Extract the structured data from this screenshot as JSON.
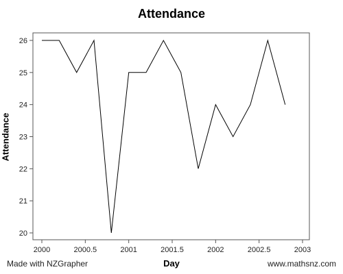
{
  "footer": {
    "left_text": "Made with NZGrapher",
    "right_text": "www.mathsnz.com"
  },
  "chart_data": {
    "type": "line",
    "title": "Attendance",
    "xlabel": "Day",
    "ylabel": "Attendance",
    "xlim": [
      2000,
      3003
    ],
    "ylim": [
      19.7,
      26.2
    ],
    "x_ticks": [
      2000,
      2000.5,
      2001,
      2001.5,
      2002,
      2002.5,
      2003
    ],
    "x_tick_labels": [
      "2000",
      "2000.5",
      "2001",
      "2001.5",
      "2002",
      "2002.5",
      "2003"
    ],
    "y_ticks": [
      20,
      21,
      22,
      23,
      24,
      25,
      26
    ],
    "y_tick_labels": [
      "20",
      "21",
      "22",
      "23",
      "24",
      "25",
      "26"
    ],
    "grid": false,
    "series": [
      {
        "color": "#000000",
        "x": [
          2000.0,
          2000.2,
          2000.4,
          2000.6,
          2000.8,
          2001.0,
          2001.2,
          2001.4,
          2001.6,
          2001.8,
          2002.0,
          2002.2,
          2002.4,
          2002.6,
          2002.8
        ],
        "y": [
          26,
          26,
          25,
          26,
          20,
          25,
          25,
          26,
          25,
          22,
          24,
          23,
          24,
          26,
          24
        ]
      }
    ]
  }
}
